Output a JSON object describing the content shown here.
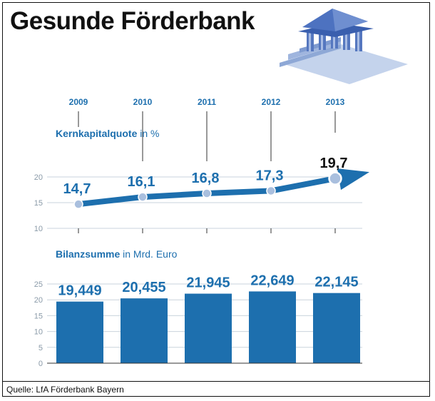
{
  "title": "Gesunde Förderbank",
  "source": "Quelle: LfA Förderbank Bayern",
  "colors": {
    "accent": "#1d6fae",
    "point": "#a9bfde",
    "grid": "#c9d3dc"
  },
  "icon": "bank-building-icon",
  "chart_data": [
    {
      "type": "line",
      "title_strong": "Kernkapitalquote",
      "title_rest": " in %",
      "x": [
        "2009",
        "2010",
        "2011",
        "2012",
        "2013"
      ],
      "values": [
        14.7,
        16.1,
        16.8,
        17.3,
        19.7
      ],
      "labels": [
        "14,7",
        "16,1",
        "16,8",
        "17,3",
        "19,7"
      ],
      "y_ticks": [
        "10",
        "15",
        "20"
      ],
      "ylim": [
        10,
        20
      ],
      "grid": true
    },
    {
      "type": "bar",
      "title_strong": "Bilanzsumme",
      "title_rest": " in Mrd. Euro",
      "categories": [
        "2009",
        "2010",
        "2011",
        "2012",
        "2013"
      ],
      "values": [
        19.449,
        20.455,
        21.945,
        22.649,
        22.145
      ],
      "labels": [
        "19,449",
        "20,455",
        "21,945",
        "22,649",
        "22,145"
      ],
      "y_ticks": [
        "0",
        "5",
        "10",
        "15",
        "20",
        "25"
      ],
      "ylim": [
        0,
        25
      ],
      "grid": true
    }
  ]
}
